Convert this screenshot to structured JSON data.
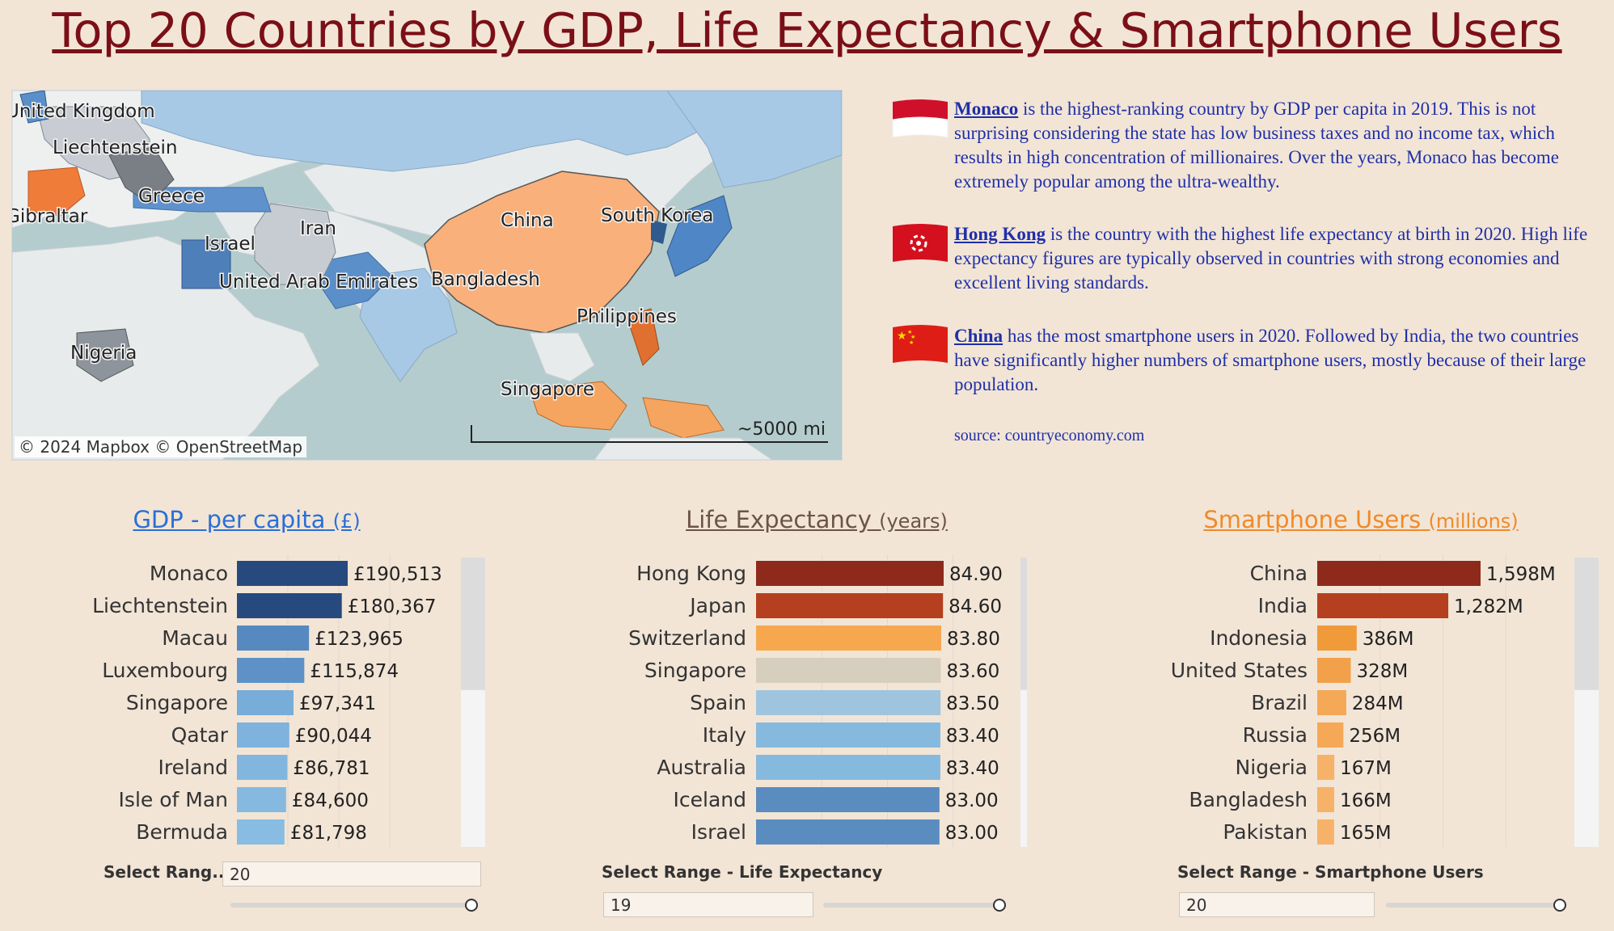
{
  "title": "Top 20 Countries by GDP, Life Expectancy & Smartphone Users",
  "map": {
    "labels": [
      "United Kingdom",
      "Liechtenstein",
      "Greece",
      "Gibraltar",
      "Israel",
      "Iran",
      "United Arab Emirates",
      "China",
      "South Korea",
      "Bangladesh",
      "Philippines",
      "Nigeria",
      "Singapore"
    ],
    "copyright": "© 2024 Mapbox  © OpenStreetMap",
    "scale": "~5000 mi"
  },
  "notes": [
    {
      "country": "Monaco",
      "text": " is the highest-ranking country by GDP per capita in 2019. This is not surprising considering the state has low business taxes and no income tax, which results in high concentration of millionaires. Over the years, Monaco has become extremely popular among the ultra-wealthy.",
      "flag": "monaco-flag-icon"
    },
    {
      "country": "Hong Kong",
      "text": " is the country with the highest life expectancy at birth in 2020. High life expectancy figures are typically observed in countries with strong economies and excellent living standards.",
      "flag": "hong-kong-flag-icon"
    },
    {
      "country": "China",
      "text": " has the most smartphone users in 2020. Followed by India, the two countries have significantly higher numbers of smartphone users, mostly because of their large population.",
      "flag": "china-flag-icon"
    }
  ],
  "source": "source: countryeconomy.com",
  "chart_data": [
    {
      "type": "bar",
      "orientation": "horizontal",
      "title": "GDP - per capita",
      "unit": "(£)",
      "title_color": "#2a6fd6",
      "categories": [
        "Monaco",
        "Liechtenstein",
        "Macau",
        "Luxembourg",
        "Singapore",
        "Qatar",
        "Ireland",
        "Isle of Man",
        "Bermuda"
      ],
      "values": [
        190513,
        180367,
        123965,
        115874,
        97341,
        90044,
        86781,
        84600,
        81798
      ],
      "labels": [
        "£190,513",
        "£180,367",
        "£123,965",
        "£115,874",
        "£97,341",
        "£90,044",
        "£86,781",
        "£84,600",
        "£81,798"
      ],
      "colors": [
        "#274a7e",
        "#274a7e",
        "#5589c0",
        "#5e92c6",
        "#78acd9",
        "#7fb2dc",
        "#83b6de",
        "#86b9e0",
        "#89bce2"
      ],
      "xlim": [
        0,
        190513
      ],
      "grid": true,
      "select_label": "Select Rang...",
      "select_value": "20"
    },
    {
      "type": "bar",
      "orientation": "horizontal",
      "title": "Life Expectancy",
      "unit": "(years)",
      "title_color": "#6b5548",
      "categories": [
        "Hong Kong",
        "Japan",
        "Switzerland",
        "Singapore",
        "Spain",
        "Italy",
        "Australia",
        "Iceland",
        "Israel"
      ],
      "values": [
        84.9,
        84.6,
        83.8,
        83.6,
        83.5,
        83.4,
        83.4,
        83.0,
        83.0
      ],
      "labels": [
        "84.90",
        "84.60",
        "83.80",
        "83.60",
        "83.50",
        "83.40",
        "83.40",
        "83.00",
        "83.00"
      ],
      "colors": [
        "#8e2a1c",
        "#b5401f",
        "#f7a84f",
        "#d6cfbf",
        "#9fc5de",
        "#86b9de",
        "#86b9de",
        "#5a8cc0",
        "#5a8cc0"
      ],
      "xlim": [
        0,
        84.9
      ],
      "grid": true,
      "select_label": "Select Range - Life Expectancy",
      "select_value": "19"
    },
    {
      "type": "bar",
      "orientation": "horizontal",
      "title": "Smartphone Users",
      "unit": "(millions)",
      "title_color": "#f08a2a",
      "categories": [
        "China",
        "India",
        "Indonesia",
        "United States",
        "Brazil",
        "Russia",
        "Nigeria",
        "Bangladesh",
        "Pakistan"
      ],
      "values": [
        1598,
        1282,
        386,
        328,
        284,
        256,
        167,
        166,
        165
      ],
      "labels": [
        "1,598M",
        "1,282M",
        "386M",
        "328M",
        "284M",
        "256M",
        "167M",
        "166M",
        "165M"
      ],
      "colors": [
        "#8e2a1c",
        "#b5401f",
        "#f09a3a",
        "#f3a04a",
        "#f5a855",
        "#f5a855",
        "#f7b26a",
        "#f7b26a",
        "#f7b26a"
      ],
      "xlim": [
        0,
        1598
      ],
      "grid": true,
      "select_label": "Select Range - Smartphone Users",
      "select_value": "20"
    }
  ]
}
